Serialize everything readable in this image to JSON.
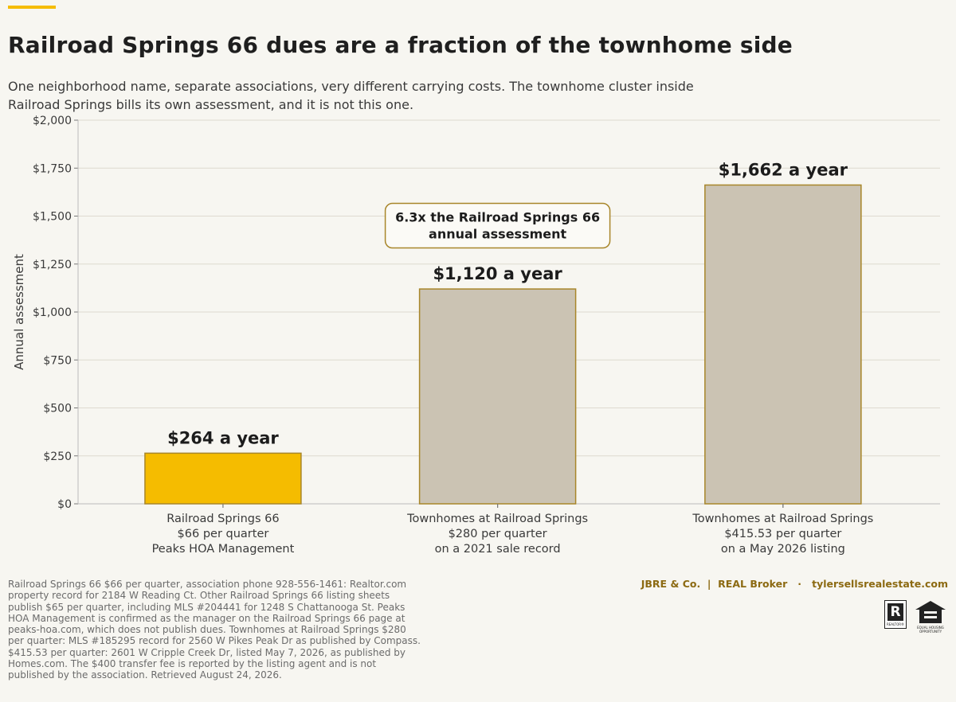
{
  "header": {
    "title": "Railroad Springs 66 dues are a fraction of the townhome side",
    "subtitle": "One neighborhood name, separate associations, very different carrying costs. The townhome cluster inside Railroad Springs bills its own assessment, and it is not this one."
  },
  "chart_data": {
    "type": "bar",
    "ylabel": "Annual assessment",
    "ylim": [
      0,
      2000
    ],
    "yticks": [
      0,
      250,
      500,
      750,
      1000,
      1250,
      1500,
      1750,
      2000
    ],
    "ytick_labels": [
      "$0",
      "$250",
      "$500",
      "$750",
      "$1,000",
      "$1,250",
      "$1,500",
      "$1,750",
      "$2,000"
    ],
    "grid": true,
    "categories": [
      [
        "Railroad Springs 66",
        "$66 per quarter",
        "Peaks HOA Management"
      ],
      [
        "Townhomes at Railroad Springs",
        "$280 per quarter",
        "on a 2021 sale record"
      ],
      [
        "Townhomes at Railroad Springs",
        "$415.53 per quarter",
        "on a May 2026 listing"
      ]
    ],
    "values": [
      264,
      1120,
      1662
    ],
    "data_labels": [
      "$264 a year",
      "$1,120 a year",
      "$1,662 a year"
    ],
    "colors": [
      "#f5bc00",
      "#cbc3b3",
      "#cbc3b3"
    ],
    "edge_color": "#a8862a",
    "annotation": {
      "lines": [
        "6.3x the Railroad Springs 66",
        "annual assessment"
      ],
      "anchor_category": 1,
      "anchor_value": 1450
    }
  },
  "footer": {
    "source": "Railroad Springs 66 $66 per quarter, association phone 928-556-1461: Realtor.com property record for 2184 W Reading Ct. Other Railroad Springs 66 listing sheets publish $65 per quarter, including MLS #204441 for 1248 S Chattanooga St. Peaks HOA Management is confirmed as the manager on the Railroad Springs 66 page at peaks-hoa.com, which does not publish dues. Townhomes at Railroad Springs $280 per quarter: MLS #185295 record for 2560 W Pikes Peak Dr as published by Compass. $415.53 per quarter: 2601 W Cripple Creek Dr, listed May 7, 2026, as published by Homes.com. The $400 transfer fee is reported by the listing agent and is not published by the association. Retrieved August 24, 2026.",
    "brand": "JBRE & Co.  |  REAL Broker   ·   tylersellsrealestate.com",
    "realtor_caption": "REALTOR®",
    "eho_caption": "EQUAL HOUSING OPPORTUNITY"
  },
  "icons": [
    "realtor-logo-icon",
    "equal-housing-icon"
  ]
}
